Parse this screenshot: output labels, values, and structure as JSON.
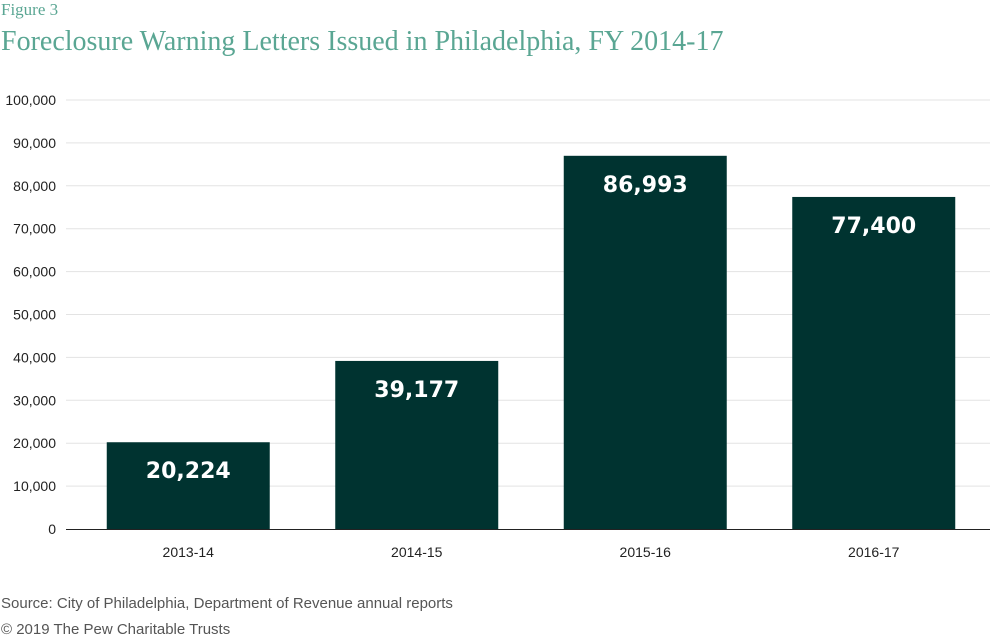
{
  "figure_label": "Figure 3",
  "source": "Source: City of Philadelphia, Department of Revenue annual reports",
  "copyright": "© 2019 The Pew Charitable Trusts",
  "colors": {
    "bar": "#003330",
    "title": "#5aa693",
    "grid": "#e3e3e3",
    "axis": "#222222",
    "tick_text": "#222222",
    "data_label": "#ffffff"
  },
  "chart_data": {
    "type": "bar",
    "title": "Foreclosure Warning Letters Issued in Philadelphia, FY 2014-17",
    "xlabel": "",
    "ylabel": "",
    "categories": [
      "2013-14",
      "2014-15",
      "2015-16",
      "2016-17"
    ],
    "values": [
      20224,
      39177,
      86993,
      77400
    ],
    "value_labels": [
      "20,224",
      "39,177",
      "86,993",
      "77,400"
    ],
    "ylim": [
      0,
      100000
    ],
    "yticks": [
      0,
      10000,
      20000,
      30000,
      40000,
      50000,
      60000,
      70000,
      80000,
      90000,
      100000
    ],
    "ytick_labels": [
      "0",
      "10,000",
      "20,000",
      "30,000",
      "40,000",
      "50,000",
      "60,000",
      "70,000",
      "80,000",
      "90,000",
      "100,000"
    ],
    "grid": true,
    "legend": "none"
  }
}
